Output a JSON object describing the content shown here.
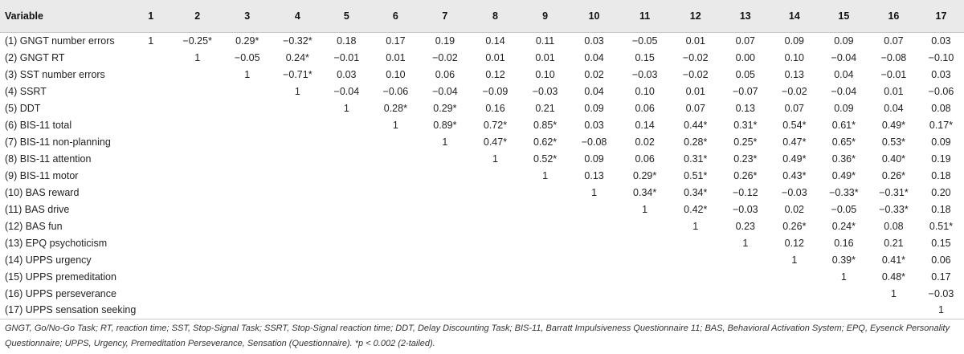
{
  "table": {
    "headers": [
      "Variable",
      "1",
      "2",
      "3",
      "4",
      "5",
      "6",
      "7",
      "8",
      "9",
      "10",
      "11",
      "12",
      "13",
      "14",
      "15",
      "16",
      "17"
    ],
    "rows": [
      [
        "(1) GNGT number errors",
        "1",
        "−0.25*",
        "0.29*",
        "−0.32*",
        "0.18",
        "0.17",
        "0.19",
        "0.14",
        "0.11",
        "0.03",
        "−0.05",
        "0.01",
        "0.07",
        "0.09",
        "0.09",
        "0.07",
        "0.03"
      ],
      [
        "(2) GNGT RT",
        "",
        "1",
        "−0.05",
        "0.24*",
        "−0.01",
        "0.01",
        "−0.02",
        "0.01",
        "0.01",
        "0.04",
        "0.15",
        "−0.02",
        "0.00",
        "0.10",
        "−0.04",
        "−0.08",
        "−0.10"
      ],
      [
        "(3) SST number errors",
        "",
        "",
        "1",
        "−0.71*",
        "0.03",
        "0.10",
        "0.06",
        "0.12",
        "0.10",
        "0.02",
        "−0.03",
        "−0.02",
        "0.05",
        "0.13",
        "0.04",
        "−0.01",
        "0.03"
      ],
      [
        "(4) SSRT",
        "",
        "",
        "",
        "1",
        "−0.04",
        "−0.06",
        "−0.04",
        "−0.09",
        "−0.03",
        "0.04",
        "0.10",
        "0.01",
        "−0.07",
        "−0.02",
        "−0.04",
        "0.01",
        "−0.06"
      ],
      [
        "(5) DDT",
        "",
        "",
        "",
        "",
        "1",
        "0.28*",
        "0.29*",
        "0.16",
        "0.21",
        "0.09",
        "0.06",
        "0.07",
        "0.13",
        "0.07",
        "0.09",
        "0.04",
        "0.08"
      ],
      [
        "(6) BIS-11 total",
        "",
        "",
        "",
        "",
        "",
        "1",
        "0.89*",
        "0.72*",
        "0.85*",
        "0.03",
        "0.14",
        "0.44*",
        "0.31*",
        "0.54*",
        "0.61*",
        "0.49*",
        "0.17*"
      ],
      [
        "(7) BIS-11 non-planning",
        "",
        "",
        "",
        "",
        "",
        "",
        "1",
        "0.47*",
        "0.62*",
        "−0.08",
        "0.02",
        "0.28*",
        "0.25*",
        "0.47*",
        "0.65*",
        "0.53*",
        "0.09"
      ],
      [
        "(8) BIS-11 attention",
        "",
        "",
        "",
        "",
        "",
        "",
        "",
        "1",
        "0.52*",
        "0.09",
        "0.06",
        "0.31*",
        "0.23*",
        "0.49*",
        "0.36*",
        "0.40*",
        "0.19"
      ],
      [
        "(9) BIS-11 motor",
        "",
        "",
        "",
        "",
        "",
        "",
        "",
        "",
        "1",
        "0.13",
        "0.29*",
        "0.51*",
        "0.26*",
        "0.43*",
        "0.49*",
        "0.26*",
        "0.18"
      ],
      [
        "(10) BAS reward",
        "",
        "",
        "",
        "",
        "",
        "",
        "",
        "",
        "",
        "1",
        "0.34*",
        "0.34*",
        "−0.12",
        "−0.03",
        "−0.33*",
        "−0.31*",
        "0.20"
      ],
      [
        "(11) BAS drive",
        "",
        "",
        "",
        "",
        "",
        "",
        "",
        "",
        "",
        "",
        "1",
        "0.42*",
        "−0.03",
        "0.02",
        "−0.05",
        "−0.33*",
        "0.18"
      ],
      [
        "(12) BAS fun",
        "",
        "",
        "",
        "",
        "",
        "",
        "",
        "",
        "",
        "",
        "",
        "1",
        "0.23",
        "0.26*",
        "0.24*",
        "0.08",
        "0.51*"
      ],
      [
        "(13) EPQ psychoticism",
        "",
        "",
        "",
        "",
        "",
        "",
        "",
        "",
        "",
        "",
        "",
        "",
        "1",
        "0.12",
        "0.16",
        "0.21",
        "0.15"
      ],
      [
        "(14) UPPS urgency",
        "",
        "",
        "",
        "",
        "",
        "",
        "",
        "",
        "",
        "",
        "",
        "",
        "",
        "1",
        "0.39*",
        "0.41*",
        "0.06"
      ],
      [
        "(15) UPPS premeditation",
        "",
        "",
        "",
        "",
        "",
        "",
        "",
        "",
        "",
        "",
        "",
        "",
        "",
        "",
        "1",
        "0.48*",
        "0.17"
      ],
      [
        "(16) UPPS perseverance",
        "",
        "",
        "",
        "",
        "",
        "",
        "",
        "",
        "",
        "",
        "",
        "",
        "",
        "",
        "",
        "1",
        "−0.03"
      ],
      [
        "(17) UPPS sensation seeking",
        "",
        "",
        "",
        "",
        "",
        "",
        "",
        "",
        "",
        "",
        "",
        "",
        "",
        "",
        "",
        "",
        "1"
      ]
    ]
  },
  "footnote": "GNGT, Go/No-Go Task; RT, reaction time; SST, Stop-Signal Task; SSRT, Stop-Signal reaction time; DDT, Delay Discounting Task; BIS-11, Barratt Impulsiveness Questionnaire 11; BAS, Behavioral Activation System; EPQ, Eysenck Personality Questionnaire; UPPS, Urgency, Premeditation Perseverance, Sensation (Questionnaire). *p < 0.002 (2-tailed)."
}
